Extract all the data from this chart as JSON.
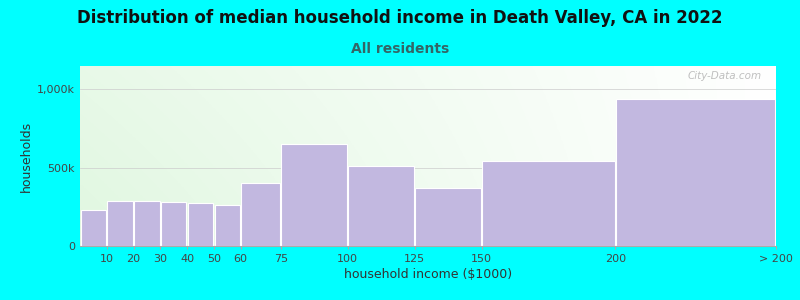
{
  "title": "Distribution of median household income in Death Valley, CA in 2022",
  "subtitle": "All residents",
  "xlabel": "household income ($1000)",
  "ylabel": "households",
  "background_color": "#00FFFF",
  "bar_color": "#c2b8e0",
  "bar_edge_color": "#ffffff",
  "bin_edges": [
    0,
    10,
    20,
    30,
    40,
    50,
    60,
    75,
    100,
    125,
    150,
    200,
    260
  ],
  "bin_labels": [
    "10",
    "20",
    "30",
    "40",
    "50",
    "60",
    "75",
    "100",
    "125",
    "150",
    "200",
    "> 200"
  ],
  "values": [
    230000,
    290000,
    285000,
    280000,
    275000,
    260000,
    400000,
    650000,
    510000,
    370000,
    540000,
    940000
  ],
  "yticks": [
    0,
    500000,
    1000000
  ],
  "ytick_labels": [
    "0",
    "500k",
    "1,000k"
  ],
  "ylim": [
    0,
    1150000
  ],
  "watermark": "City-Data.com",
  "title_fontsize": 12,
  "subtitle_fontsize": 10,
  "axis_label_fontsize": 9,
  "tick_fontsize": 8,
  "subtitle_color": "#336666",
  "title_color": "#111111"
}
